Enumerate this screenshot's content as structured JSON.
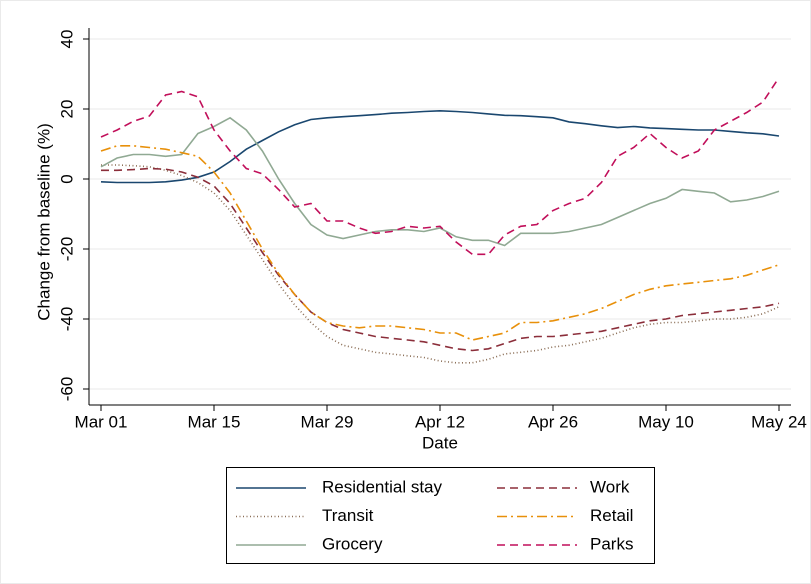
{
  "chart_data": {
    "type": "line",
    "xlabel": "Date",
    "ylabel": "Change from baseline (%)",
    "x": [
      0,
      2,
      4,
      6,
      8,
      10,
      12,
      14,
      16,
      18,
      20,
      22,
      24,
      26,
      28,
      30,
      32,
      34,
      36,
      38,
      40,
      42,
      44,
      46,
      48,
      50,
      52,
      54,
      56,
      58,
      60,
      62,
      64,
      66,
      68,
      70,
      72,
      74,
      76,
      78,
      80,
      82,
      84
    ],
    "xlim": [
      0,
      84
    ],
    "xticks": [
      {
        "value": 0,
        "label": "Mar 01"
      },
      {
        "value": 14,
        "label": "Mar 15"
      },
      {
        "value": 28,
        "label": "Mar 29"
      },
      {
        "value": 42,
        "label": "Apr 12"
      },
      {
        "value": 56,
        "label": "Apr 26"
      },
      {
        "value": 70,
        "label": "May 10"
      },
      {
        "value": 84,
        "label": "May 24"
      }
    ],
    "ylim": [
      -60,
      40
    ],
    "yticks": [
      -60,
      -40,
      -20,
      0,
      20,
      40
    ],
    "grid": true,
    "series": [
      {
        "name": "Residential stay",
        "color": "#1a476f",
        "dash": "none",
        "values": [
          -0.8,
          -1,
          -1,
          -1,
          -0.8,
          -0.3,
          0.5,
          2,
          5,
          8.5,
          11,
          13.5,
          15.5,
          17,
          17.5,
          17.8,
          18.1,
          18.4,
          18.8,
          19,
          19.3,
          19.5,
          19.3,
          19,
          18.6,
          18.2,
          18.1,
          17.8,
          17.5,
          16.3,
          15.8,
          15.2,
          14.7,
          15,
          14.6,
          14.4,
          14.2,
          14,
          14,
          13.6,
          13.2,
          12.9,
          12.3
        ]
      },
      {
        "name": "Transit",
        "color": "#8a6d55",
        "dash": "1 2.5",
        "values": [
          4,
          4,
          3.8,
          3.5,
          2.5,
          1,
          -1,
          -4,
          -9,
          -16,
          -23,
          -30,
          -36,
          -41,
          -45,
          -47.5,
          -48.5,
          -49.5,
          -50,
          -50.5,
          -51,
          -52,
          -52.5,
          -52.5,
          -51.5,
          -50,
          -49.5,
          -49,
          -48,
          -47.5,
          -46.5,
          -45.5,
          -44,
          -42.5,
          -41.5,
          -41,
          -41,
          -40.5,
          -40,
          -40,
          -39.5,
          -38.5,
          -36.5
        ]
      },
      {
        "name": "Grocery",
        "color": "#90a993",
        "dash": "none",
        "values": [
          3.5,
          6,
          7,
          7,
          6.5,
          7,
          13,
          15,
          17.5,
          14,
          8,
          0,
          -7,
          -13,
          -16,
          -17,
          -16,
          -15,
          -14.5,
          -14.5,
          -15,
          -14,
          -16.5,
          -17.5,
          -17.5,
          -19,
          -15.5,
          -15.5,
          -15.5,
          -15,
          -14,
          -13,
          -11,
          -9,
          -7,
          -5.5,
          -3,
          -3.5,
          -4,
          -6.5,
          -6,
          -5,
          -3.5
        ]
      },
      {
        "name": "Work",
        "color": "#8b2e3a",
        "dash": "8 5",
        "values": [
          2.5,
          2.5,
          2.7,
          3,
          2.8,
          2,
          0.5,
          -2,
          -7,
          -14,
          -21,
          -27.5,
          -33,
          -38,
          -41,
          -43,
          -44,
          -45,
          -45.5,
          -46,
          -46.5,
          -47.5,
          -48.5,
          -49,
          -48.5,
          -47,
          -45.5,
          -45,
          -45,
          -44.5,
          -44,
          -43.5,
          -42.5,
          -41.5,
          -40.5,
          -40,
          -39,
          -38.5,
          -38,
          -37.5,
          -37,
          -36.5,
          -35.5
        ]
      },
      {
        "name": "Retail",
        "color": "#e8900a",
        "dash": "10 4 2 4",
        "values": [
          8,
          9.5,
          9.5,
          9,
          8.5,
          7.5,
          6.5,
          2,
          -4,
          -12,
          -20,
          -27,
          -33,
          -38,
          -41,
          -42,
          -42.5,
          -42,
          -42,
          -42.5,
          -43,
          -44,
          -44,
          -46,
          -45,
          -44,
          -41,
          -41,
          -40.5,
          -39.5,
          -38.5,
          -37,
          -35,
          -33,
          -31.5,
          -30.5,
          -30,
          -29.5,
          -29,
          -28.5,
          -27.5,
          -26,
          -24.5
        ]
      },
      {
        "name": "Parks",
        "color": "#c10f5a",
        "dash": "8 5",
        "values": [
          12,
          14,
          16.5,
          18,
          24,
          25,
          23.5,
          14,
          8,
          3,
          1.5,
          -3,
          -8,
          -7,
          -12,
          -12,
          -14,
          -15.5,
          -15,
          -13.5,
          -14,
          -13.5,
          -18,
          -21.5,
          -21.5,
          -16,
          -13.5,
          -13,
          -9,
          -7,
          -5.5,
          -1,
          6.5,
          9,
          13,
          9,
          6,
          8,
          14,
          16.5,
          19,
          22,
          29
        ]
      }
    ]
  }
}
